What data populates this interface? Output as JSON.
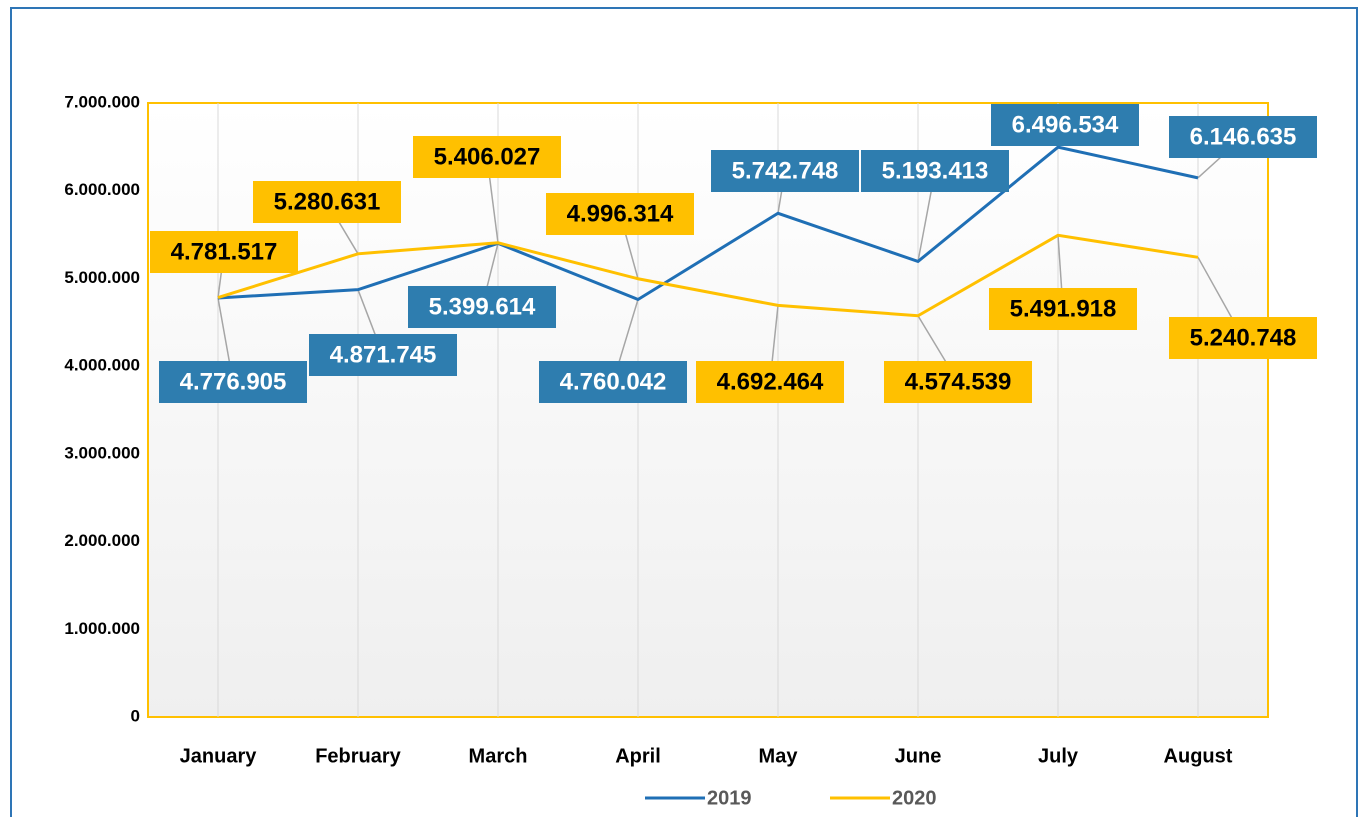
{
  "chart_data": {
    "type": "line",
    "categories": [
      "January",
      "February",
      "March",
      "April",
      "May",
      "June",
      "July",
      "August"
    ],
    "series": [
      {
        "name": "2019",
        "color": "#1f6fb5",
        "label_color": "#2e7daf",
        "label_text_color": "#ffffff",
        "values": [
          4776905,
          4871745,
          5399614,
          4760042,
          5742748,
          5193413,
          6496534,
          6146635
        ],
        "value_labels": [
          "4.776.905",
          "4.871.745",
          "5.399.614",
          "4.760.042",
          "5.742.748",
          "5.193.413",
          "6.496.534",
          "6.146.635"
        ]
      },
      {
        "name": "2020",
        "color": "#ffc000",
        "label_color": "#ffc000",
        "label_text_color": "#000000",
        "values": [
          4781517,
          5280631,
          5406027,
          4996314,
          4692464,
          4574539,
          5491918,
          5240748
        ],
        "value_labels": [
          "4.781.517",
          "5.280.631",
          "5.406.027",
          "4.996.314",
          "4.692.464",
          "4.574.539",
          "5.491.918",
          "5.240.748"
        ]
      }
    ],
    "ylim": [
      0,
      7000000
    ],
    "yticks": [
      0,
      {
        "value": 1000000,
        "label": "1.000.000"
      },
      {
        "value": 2000000,
        "label": "2.000.000"
      },
      {
        "value": 3000000,
        "label": "3.000.000"
      },
      {
        "value": 4000000,
        "label": "4.000.000"
      },
      {
        "value": 5000000,
        "label": "5.000.000"
      },
      {
        "value": 6000000,
        "label": "6.000.000"
      },
      {
        "value": 7000000,
        "label": "7.000.000"
      }
    ],
    "grid": true,
    "legend": "bottom"
  }
}
